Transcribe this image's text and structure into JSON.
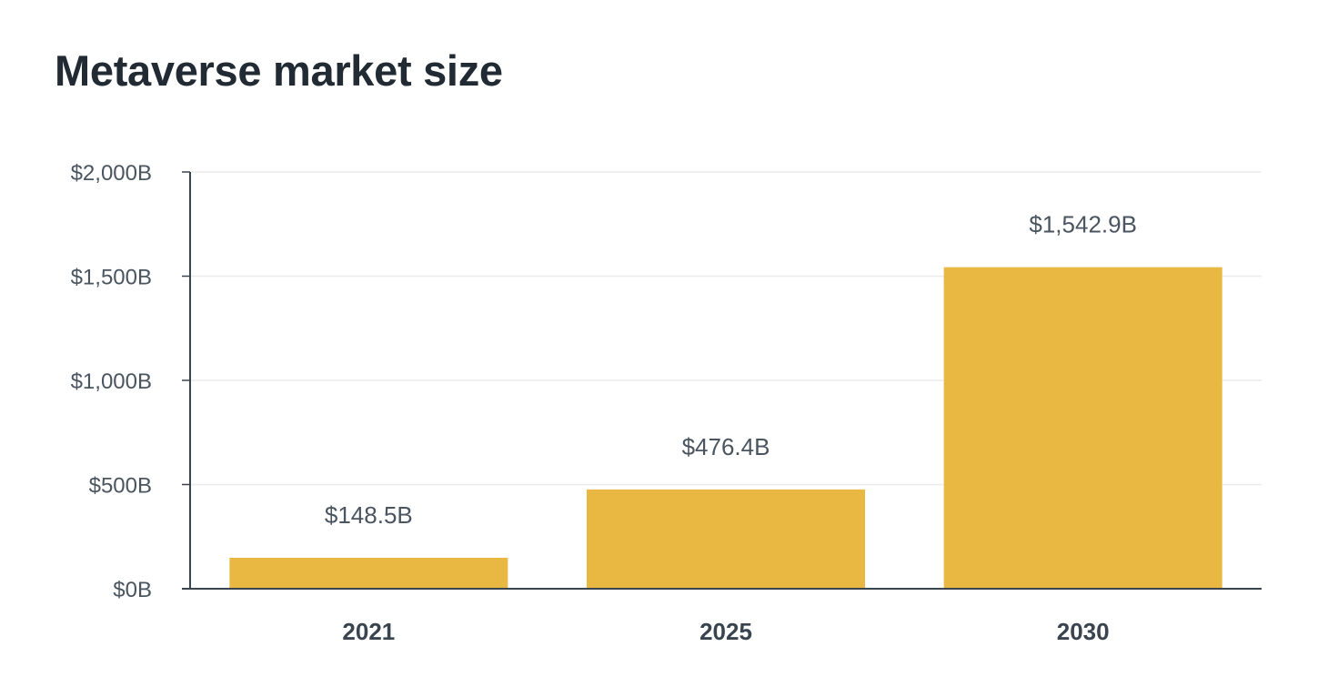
{
  "chart_data": {
    "type": "bar",
    "title": "Metaverse market size",
    "categories": [
      "2021",
      "2025",
      "2030"
    ],
    "values": [
      148.5,
      476.4,
      1542.9
    ],
    "data_labels": [
      "$148.5B",
      "$476.4B",
      "$1,542.9B"
    ],
    "ylim": [
      0,
      2000
    ],
    "yticks": [
      0,
      500,
      1000,
      1500,
      2000
    ],
    "ytick_labels": [
      "$0B",
      "$500B",
      "$1,000B",
      "$1,500B",
      "$2,000B"
    ],
    "xlabel": "",
    "ylabel": "",
    "grid": true,
    "legend": "none",
    "bar_color": "#e8b843",
    "axis_color": "#3a444e",
    "grid_color": "#ececec"
  }
}
